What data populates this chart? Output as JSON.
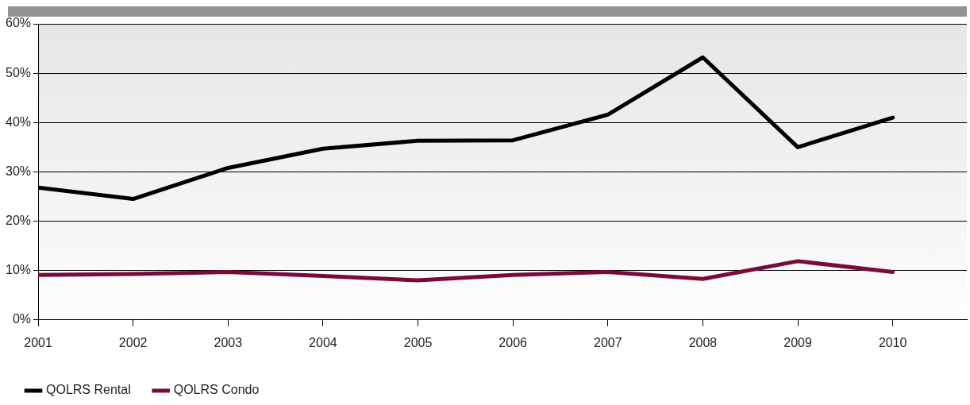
{
  "chart_data": {
    "type": "line",
    "x": [
      2001,
      2002,
      2003,
      2004,
      2005,
      2006,
      2007,
      2008,
      2009,
      2010
    ],
    "xlim": [
      2001,
      2010.78
    ],
    "xticks": [
      2001,
      2002,
      2003,
      2004,
      2005,
      2006,
      2007,
      2008,
      2009,
      2010
    ],
    "ylim": [
      0,
      60
    ],
    "yticks": [
      {
        "value": 0,
        "label": "0%"
      },
      {
        "value": 10,
        "label": "10%"
      },
      {
        "value": 20,
        "label": "20%"
      },
      {
        "value": 30,
        "label": "30%"
      },
      {
        "value": 40,
        "label": "40%"
      },
      {
        "value": 50,
        "label": "50%"
      },
      {
        "value": 60,
        "label": "60%"
      }
    ],
    "series": [
      {
        "name": "QOLRS Rental",
        "color": "#000000",
        "values": [
          26.8,
          24.5,
          30.8,
          34.7,
          36.3,
          36.4,
          41.6,
          53.2,
          35.0,
          41.0
        ]
      },
      {
        "name": "QOLRS Condo",
        "color": "#7a0a3a",
        "values": [
          9.1,
          9.3,
          9.7,
          8.9,
          8.0,
          9.1,
          9.7,
          8.3,
          11.9,
          9.7
        ]
      }
    ],
    "grid": "y",
    "legend": "bottom left",
    "marker": "none",
    "line_style": "solid"
  }
}
